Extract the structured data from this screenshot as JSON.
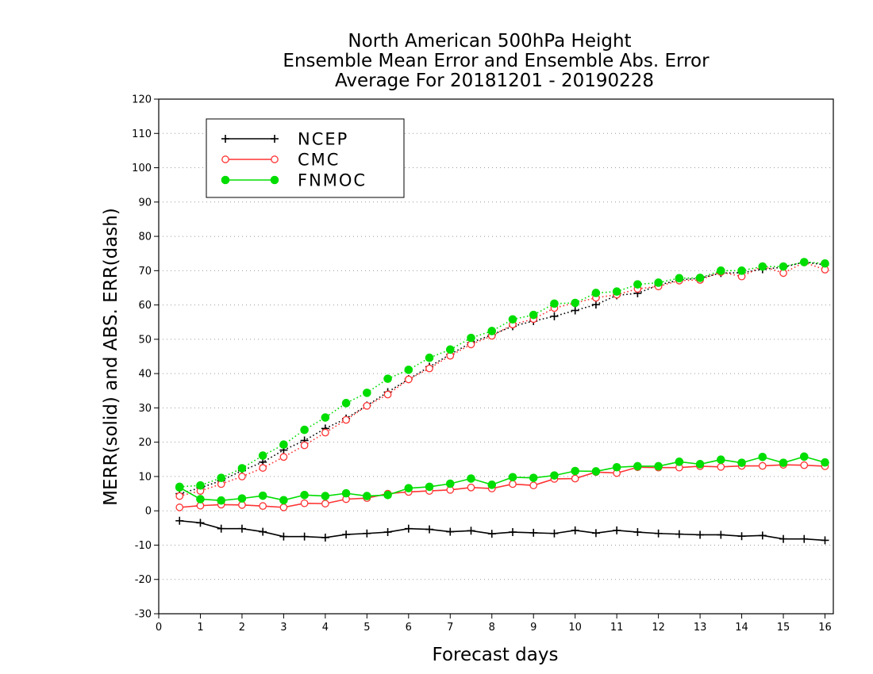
{
  "chart_data": {
    "type": "line",
    "title": [
      "North American 500hPa Height",
      "Ensemble Mean Error and Ensemble Abs. Error",
      "Average For 20181201 - 20190228"
    ],
    "xlabel": "Forecast days",
    "ylabel": "MERR(solid) and ABS. ERR(dash)",
    "xlim": [
      0,
      16.2
    ],
    "ylim": [
      -30,
      120
    ],
    "xticks": [
      0,
      1,
      2,
      3,
      4,
      5,
      6,
      7,
      8,
      9,
      10,
      11,
      12,
      13,
      14,
      15,
      16
    ],
    "yticks": [
      -30,
      -20,
      -10,
      0,
      10,
      20,
      30,
      40,
      50,
      60,
      70,
      80,
      90,
      100,
      110,
      120
    ],
    "grid": "horizontal-dotted",
    "legend_placement": "top-left",
    "x": [
      0.5,
      1,
      1.5,
      2,
      2.5,
      3,
      3.5,
      4,
      4.5,
      5,
      5.5,
      6,
      6.5,
      7,
      7.5,
      8,
      8.5,
      9,
      9.5,
      10,
      10.5,
      11,
      11.5,
      12,
      12.5,
      13,
      13.5,
      14,
      14.5,
      15,
      15.5,
      16
    ],
    "series": [
      {
        "name": "NCEP",
        "color": "#000000",
        "marker": "plus",
        "merr": [
          -2.9,
          -3.5,
          -5.2,
          -5.2,
          -6.1,
          -7.5,
          -7.5,
          -7.8,
          -6.9,
          -6.6,
          -6.2,
          -5.2,
          -5.4,
          -6.1,
          -5.8,
          -6.7,
          -6.2,
          -6.4,
          -6.6,
          -5.7,
          -6.5,
          -5.7,
          -6.2,
          -6.6,
          -6.8,
          -7.0,
          -7.0,
          -7.4,
          -7.2,
          -8.2,
          -8.2,
          -8.6
        ],
        "abs_err": [
          5.0,
          6.7,
          8.8,
          11.7,
          14.2,
          17.7,
          20.5,
          24.0,
          26.9,
          30.7,
          34.6,
          38.4,
          42.0,
          45.6,
          49.0,
          51.3,
          53.8,
          55.3,
          56.7,
          58.4,
          60.1,
          62.8,
          63.4,
          65.8,
          67.3,
          67.8,
          69.3,
          69.4,
          70.4,
          71.0,
          72.5,
          71.7
        ]
      },
      {
        "name": "CMC",
        "color": "#ff3333",
        "marker": "open-circle",
        "merr": [
          1.0,
          1.5,
          1.8,
          1.7,
          1.4,
          1.0,
          2.2,
          2.1,
          3.4,
          3.7,
          5.0,
          5.5,
          5.8,
          6.1,
          6.8,
          6.5,
          7.8,
          7.4,
          9.3,
          9.4,
          11.3,
          11.0,
          12.7,
          12.6,
          12.6,
          13.0,
          12.8,
          13.1,
          13.1,
          13.4,
          13.3,
          13.0
        ],
        "abs_err": [
          4.3,
          5.8,
          7.8,
          10.0,
          12.5,
          15.7,
          19.1,
          22.8,
          26.5,
          30.6,
          33.9,
          38.3,
          41.5,
          45.2,
          48.5,
          51.0,
          54.3,
          55.9,
          59.1,
          60.6,
          62.1,
          63.0,
          64.7,
          65.4,
          67.1,
          67.3,
          69.6,
          68.3,
          71.3,
          69.3,
          72.4,
          70.3
        ]
      },
      {
        "name": "FNMOC",
        "color": "#00dd00",
        "marker": "filled-circle",
        "merr": [
          6.8,
          3.4,
          3.0,
          3.6,
          4.4,
          3.1,
          4.6,
          4.3,
          5.1,
          4.3,
          4.6,
          6.6,
          7.0,
          7.9,
          9.4,
          7.6,
          9.8,
          9.6,
          10.3,
          11.6,
          11.5,
          12.7,
          13.0,
          13.0,
          14.3,
          13.6,
          14.9,
          14.0,
          15.7,
          14.0,
          15.8,
          14.1
        ],
        "abs_err": [
          7.0,
          7.4,
          9.6,
          12.4,
          16.1,
          19.3,
          23.6,
          27.2,
          31.4,
          34.4,
          38.5,
          41.1,
          44.6,
          47.0,
          50.4,
          52.4,
          55.8,
          57.1,
          60.4,
          60.6,
          63.5,
          63.9,
          66.0,
          66.5,
          67.8,
          67.9,
          70.0,
          70.0,
          71.2,
          71.2,
          72.5,
          72.1
        ]
      }
    ]
  }
}
